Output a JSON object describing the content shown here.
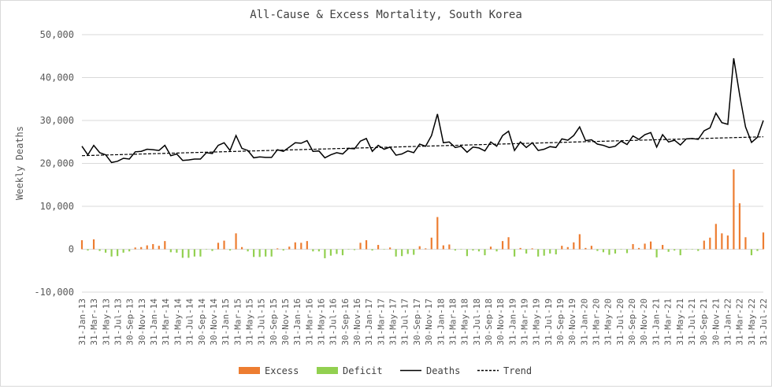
{
  "chart_data": {
    "type": "bar+line",
    "title": "All-Cause & Excess Mortality, South Korea",
    "ylabel": "Weekly Deaths",
    "ylim": [
      -10000,
      50000
    ],
    "yticks": [
      -10000,
      0,
      10000,
      20000,
      30000,
      40000,
      50000
    ],
    "ytick_labels": [
      "-10,000",
      "0",
      "10,000",
      "20,000",
      "30,000",
      "40,000",
      "50,000"
    ],
    "grid": true,
    "legend_position": "bottom",
    "x_tick_labels": [
      "31-Jan-13",
      "31-Mar-13",
      "31-May-13",
      "31-Jul-13",
      "30-Sep-13",
      "30-Nov-13",
      "31-Jan-14",
      "31-Mar-14",
      "31-May-14",
      "31-Jul-14",
      "30-Sep-14",
      "30-Nov-14",
      "31-Jan-15",
      "31-Mar-15",
      "31-May-15",
      "31-Jul-15",
      "30-Sep-15",
      "30-Nov-15",
      "31-Jan-16",
      "31-Mar-16",
      "31-May-16",
      "31-Jul-16",
      "30-Sep-16",
      "30-Nov-16",
      "31-Jan-17",
      "31-Mar-17",
      "31-May-17",
      "31-Jul-17",
      "30-Sep-17",
      "30-Nov-17",
      "31-Jan-18",
      "31-Mar-18",
      "31-May-18",
      "31-Jul-18",
      "30-Sep-18",
      "30-Nov-18",
      "31-Jan-19",
      "31-Mar-19",
      "31-May-19",
      "31-Jul-19",
      "30-Sep-19",
      "30-Nov-19",
      "31-Jan-20",
      "31-Mar-20",
      "31-May-20",
      "31-Jul-20",
      "30-Sep-20",
      "30-Nov-20",
      "31-Jan-21",
      "31-Mar-21",
      "31-May-21",
      "31-Jul-21",
      "30-Sep-21",
      "30-Nov-21",
      "31-Jan-22",
      "31-Mar-22",
      "31-May-22",
      "31-Jul-22"
    ],
    "series": [
      {
        "name": "Excess",
        "type": "bar",
        "color": "#ed7d31"
      },
      {
        "name": "Deficit",
        "type": "bar",
        "color": "#92d050"
      },
      {
        "name": "Deaths",
        "type": "line",
        "color": "#000000",
        "values": [
          24000,
          22000,
          24200,
          22500,
          22000,
          20200,
          20500,
          21200,
          21000,
          22700,
          22800,
          23300,
          23200,
          23000,
          24200,
          21800,
          22200,
          20700,
          20800,
          21000,
          21000,
          22500,
          22300,
          24200,
          24800,
          23000,
          26500,
          23500,
          23000,
          21300,
          21500,
          21400,
          21400,
          23200,
          22800,
          23800,
          24800,
          24700,
          25300,
          22800,
          22900,
          21300,
          22000,
          22500,
          22200,
          23500,
          23400,
          25200,
          25800,
          22800,
          24200,
          23300,
          23800,
          21900,
          22200,
          22900,
          22500,
          24500,
          24000,
          26500,
          31500,
          24800,
          25000,
          23700,
          24000,
          22600,
          23800,
          23600,
          22900,
          25000,
          24000,
          26500,
          27500,
          23000,
          25000,
          23700,
          24800,
          23000,
          23300,
          23900,
          23700,
          25700,
          25400,
          26500,
          28500,
          25300,
          25500,
          24500,
          24200,
          23700,
          24000,
          25200,
          24400,
          26400,
          25600,
          26700,
          27200,
          23800,
          26700,
          25000,
          25400,
          24300,
          25700,
          25800,
          25600,
          27600,
          28300,
          31700,
          29500,
          29100,
          44500,
          36000,
          28500,
          24900,
          26100,
          30000
        ]
      },
      {
        "name": "Trend",
        "type": "line",
        "color": "#000000",
        "dash": true,
        "start": 21800,
        "end": 26200
      }
    ],
    "excess_values": [
      2100,
      -300,
      2300,
      -400,
      -800,
      -1700,
      -1600,
      -800,
      -500,
      400,
      500,
      900,
      1200,
      800,
      1900,
      -700,
      -800,
      -2000,
      -2000,
      -1700,
      -1700,
      -100,
      -400,
      1500,
      2000,
      -300,
      3700,
      500,
      -500,
      -1800,
      -1800,
      -1700,
      -1700,
      200,
      -300,
      600,
      1600,
      1500,
      1900,
      -500,
      -500,
      -2100,
      -1500,
      -1100,
      -1400,
      -100,
      -200,
      1500,
      2100,
      -300,
      1000,
      -100,
      400,
      -1700,
      -1600,
      -1100,
      -1300,
      700,
      200,
      2700,
      7500,
      900,
      1100,
      -300,
      -100,
      -1600,
      -300,
      -500,
      -1400,
      600,
      -500,
      1900,
      2800,
      -1700,
      300,
      -1000,
      200,
      -1700,
      -1500,
      -1000,
      -1200,
      800,
      500,
      1600,
      3500,
      300,
      800,
      -400,
      -700,
      -1300,
      -1000,
      -100,
      -900,
      1200,
      300,
      1300,
      1800,
      -1900,
      1000,
      -600,
      -300,
      -1400,
      -100,
      -100,
      -400,
      2000,
      2700,
      5900,
      3700,
      3200,
      18600,
      10700,
      2800,
      -1400,
      -400,
      3900
    ],
    "legend": [
      "Excess",
      "Deficit",
      "Deaths",
      "Trend"
    ]
  }
}
